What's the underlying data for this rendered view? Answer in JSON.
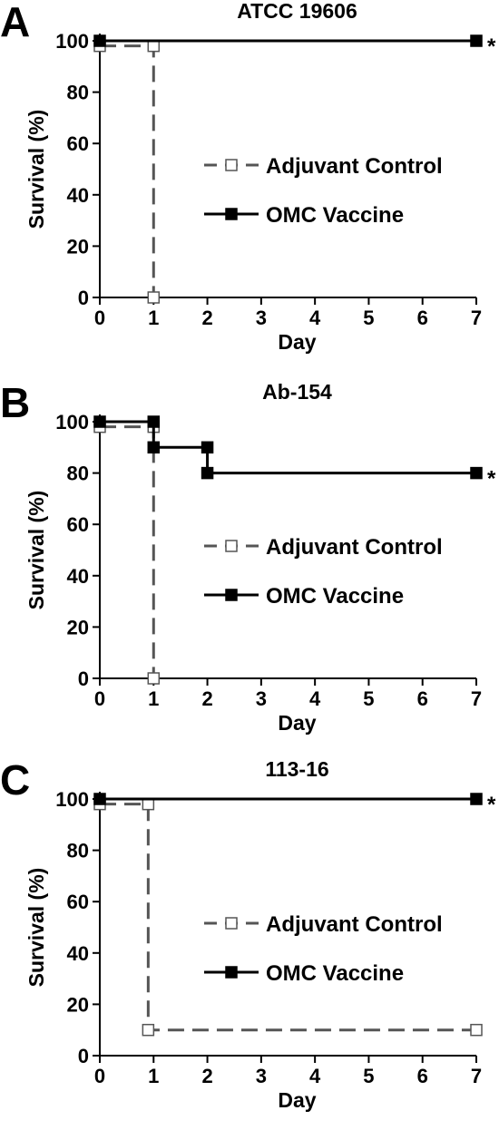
{
  "chart_data": [
    {
      "type": "line",
      "panel_letter": "A",
      "title": "ATCC 19606",
      "xlabel": "Day",
      "ylabel": "Survival (%)",
      "xlim": [
        0,
        7
      ],
      "ylim": [
        0,
        100
      ],
      "xticks": [
        0,
        1,
        2,
        3,
        4,
        5,
        6,
        7
      ],
      "yticks": [
        0,
        20,
        40,
        60,
        80,
        100
      ],
      "legend_position": "center-right",
      "significance_marker": "*",
      "series": [
        {
          "name": "Adjuvant Control",
          "style": "dashed",
          "marker": "open-square",
          "color": "#555555",
          "points": [
            [
              0,
              98
            ],
            [
              1,
              98
            ],
            [
              1,
              0
            ]
          ]
        },
        {
          "name": "OMC Vaccine",
          "style": "solid",
          "marker": "filled-square",
          "color": "#000000",
          "points": [
            [
              0,
              100
            ],
            [
              7,
              100
            ]
          ]
        }
      ]
    },
    {
      "type": "line",
      "panel_letter": "B",
      "title": "Ab-154",
      "xlabel": "Day",
      "ylabel": "Survival (%)",
      "xlim": [
        0,
        7
      ],
      "ylim": [
        0,
        100
      ],
      "xticks": [
        0,
        1,
        2,
        3,
        4,
        5,
        6,
        7
      ],
      "yticks": [
        0,
        20,
        40,
        60,
        80,
        100
      ],
      "legend_position": "center-right",
      "significance_marker": "*",
      "series": [
        {
          "name": "Adjuvant Control",
          "style": "dashed",
          "marker": "open-square",
          "color": "#555555",
          "points": [
            [
              0,
              98
            ],
            [
              1,
              98
            ],
            [
              1,
              0
            ]
          ]
        },
        {
          "name": "OMC Vaccine",
          "style": "solid",
          "marker": "filled-square",
          "color": "#000000",
          "points": [
            [
              0,
              100
            ],
            [
              1,
              100
            ],
            [
              1,
              90
            ],
            [
              2,
              90
            ],
            [
              2,
              80
            ],
            [
              7,
              80
            ]
          ]
        }
      ]
    },
    {
      "type": "line",
      "panel_letter": "C",
      "title": "113-16",
      "xlabel": "Day",
      "ylabel": "Survival (%)",
      "xlim": [
        0,
        7
      ],
      "ylim": [
        0,
        100
      ],
      "xticks": [
        0,
        1,
        2,
        3,
        4,
        5,
        6,
        7
      ],
      "yticks": [
        0,
        20,
        40,
        60,
        80,
        100
      ],
      "legend_position": "center-right",
      "significance_marker": "*",
      "series": [
        {
          "name": "Adjuvant Control",
          "style": "dashed",
          "marker": "open-square",
          "color": "#555555",
          "points": [
            [
              0,
              98
            ],
            [
              0.9,
              98
            ],
            [
              0.9,
              10
            ],
            [
              7,
              10
            ]
          ]
        },
        {
          "name": "OMC Vaccine",
          "style": "solid",
          "marker": "filled-square",
          "color": "#000000",
          "points": [
            [
              0,
              100
            ],
            [
              7,
              100
            ]
          ]
        }
      ]
    }
  ]
}
